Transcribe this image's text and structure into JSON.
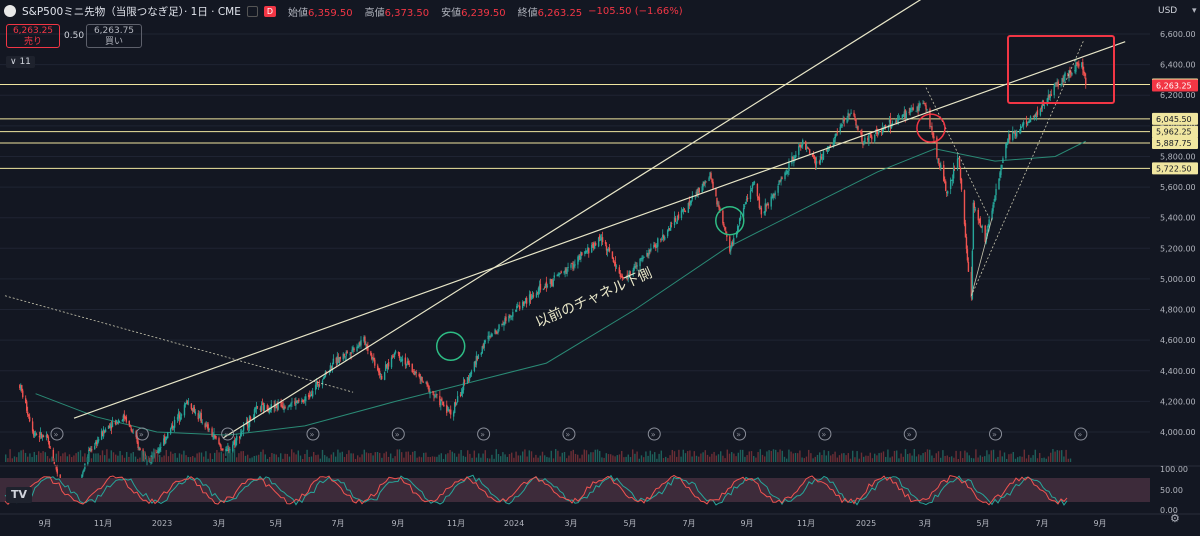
{
  "header": {
    "symbol_title": "S&P500ミニ先物（当限つなぎ足）· 1日 · CME",
    "badge": "D",
    "ohlc": [
      {
        "key": "始値",
        "value": "6,359.50"
      },
      {
        "key": "高値",
        "value": "6,373.50"
      },
      {
        "key": "安値",
        "value": "6,239.50"
      },
      {
        "key": "終値",
        "value": "6,263.25"
      },
      {
        "key": "",
        "value": "−105.50 (−1.66%)"
      }
    ]
  },
  "trade": {
    "sell_price": "6,263.25",
    "sell_label": "売り",
    "spread": "0.50",
    "buy_price": "6,263.75",
    "buy_label": "買い"
  },
  "indicator_toggle": "∨ 11",
  "currency": "USD",
  "logo_text": "TV",
  "annotation": "以前のチャネル下側",
  "colors": {
    "up": "#26a69a",
    "down": "#ef5350",
    "level": "#f0e6a0",
    "accent_red": "#f23645",
    "ma": "#2a8a75"
  },
  "chart_data": {
    "type": "candlestick",
    "x_axis_labels": [
      "9月",
      "11月",
      "2023",
      "3月",
      "5月",
      "7月",
      "9月",
      "11月",
      "2024",
      "3月",
      "5月",
      "7月",
      "9月",
      "11月",
      "2025",
      "3月",
      "5月",
      "7月",
      "9月"
    ],
    "y_axis": {
      "min": 3900,
      "max": 6700,
      "ticks": [
        4000,
        4200,
        4400,
        4600,
        4800,
        5000,
        5200,
        5400,
        5600,
        5800,
        6000,
        6200,
        6400,
        6600
      ]
    },
    "horizontal_levels": [
      6270.0,
      6045.5,
      5962.25,
      5887.75,
      5722.5
    ],
    "current_price": 6263.25,
    "price_path": [
      [
        "2022-08-16",
        4305
      ],
      [
        "2022-08-30",
        4000
      ],
      [
        "2022-09-13",
        3950
      ],
      [
        "2022-09-27",
        3650
      ],
      [
        "2022-10-12",
        3590
      ],
      [
        "2022-10-25",
        3870
      ],
      [
        "2022-11-15",
        4050
      ],
      [
        "2022-12-01",
        4100
      ],
      [
        "2022-12-16",
        3880
      ],
      [
        "2022-12-28",
        3820
      ],
      [
        "2023-02-02",
        4200
      ],
      [
        "2023-03-13",
        3860
      ],
      [
        "2023-04-14",
        4150
      ],
      [
        "2023-05-31",
        4200
      ],
      [
        "2023-06-30",
        4450
      ],
      [
        "2023-07-31",
        4600
      ],
      [
        "2023-08-18",
        4360
      ],
      [
        "2023-09-01",
        4530
      ],
      [
        "2023-10-27",
        4120
      ],
      [
        "2023-11-30",
        4580
      ],
      [
        "2023-12-29",
        4790
      ],
      [
        "2024-02-29",
        5100
      ],
      [
        "2024-03-28",
        5270
      ],
      [
        "2024-04-19",
        4990
      ],
      [
        "2024-05-31",
        5290
      ],
      [
        "2024-07-16",
        5670
      ],
      [
        "2024-08-05",
        5190
      ],
      [
        "2024-08-30",
        5650
      ],
      [
        "2024-09-06",
        5420
      ],
      [
        "2024-10-18",
        5900
      ],
      [
        "2024-11-01",
        5740
      ],
      [
        "2024-12-06",
        6100
      ],
      [
        "2024-12-18",
        5900
      ],
      [
        "2025-02-19",
        6150
      ],
      [
        "2025-03-13",
        5550
      ],
      [
        "2025-03-25",
        5800
      ],
      [
        "2025-04-07",
        4850
      ],
      [
        "2025-04-09",
        5500
      ],
      [
        "2025-04-21",
        5250
      ],
      [
        "2025-05-13",
        5900
      ],
      [
        "2025-06-12",
        6080
      ],
      [
        "2025-06-30",
        6250
      ],
      [
        "2025-07-28",
        6427
      ],
      [
        "2025-08-01",
        6263
      ]
    ],
    "moving_average": [
      [
        "2022-09-01",
        4250
      ],
      [
        "2022-11-01",
        4100
      ],
      [
        "2023-01-02",
        4000
      ],
      [
        "2023-03-15",
        3980
      ],
      [
        "2023-06-01",
        4040
      ],
      [
        "2023-09-01",
        4200
      ],
      [
        "2023-11-01",
        4300
      ],
      [
        "2024-02-01",
        4450
      ],
      [
        "2024-05-01",
        4800
      ],
      [
        "2024-08-01",
        5200
      ],
      [
        "2024-11-01",
        5500
      ],
      [
        "2025-01-02",
        5700
      ],
      [
        "2025-03-01",
        5850
      ],
      [
        "2025-05-01",
        5770
      ],
      [
        "2025-07-01",
        5800
      ],
      [
        "2025-08-01",
        5900
      ]
    ],
    "events_count": 13,
    "oscillator": {
      "ticks": [
        "100.00",
        "50.00",
        "0.00"
      ]
    }
  }
}
